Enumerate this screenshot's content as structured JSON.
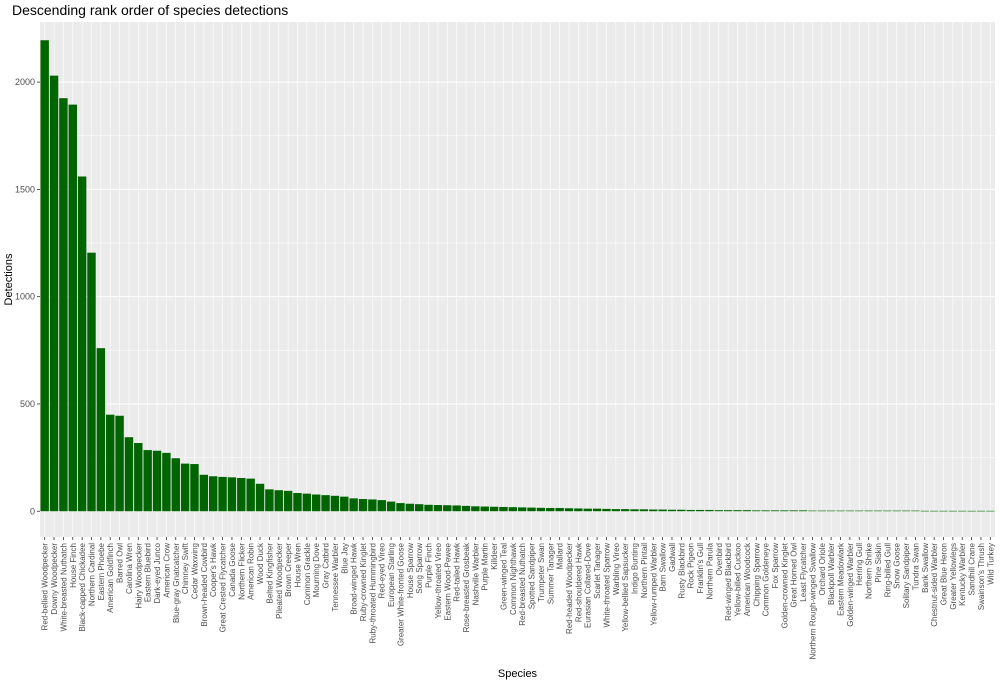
{
  "chart_data": {
    "type": "bar",
    "title": "Descending rank order of species detections",
    "xlabel": "Species",
    "ylabel": "Detections",
    "ylim": [
      -120,
      2280
    ],
    "yticks": [
      0,
      500,
      1000,
      1500,
      2000
    ],
    "grid": true,
    "bar_color": "#006400",
    "panel_color": "#ebebeb",
    "grid_color": "#ffffff",
    "categories": [
      "Red-bellied Woodpecker",
      "Downy Woodpecker",
      "White-breasted Nuthatch",
      "House Finch",
      "Black-capped Chickadee",
      "Northern Cardinal",
      "Eastern Phoebe",
      "American Goldfinch",
      "Barred Owl",
      "Carolina Wren",
      "Hairy Woodpecker",
      "Eastern Bluebird",
      "Dark-eyed Junco",
      "American Crow",
      "Blue-gray Gnatcatcher",
      "Chimney Swift",
      "Cedar Waxwing",
      "Brown-headed Cowbird",
      "Cooper's Hawk",
      "Great Crested Flycatcher",
      "Canada Goose",
      "Northern Flicker",
      "American Robin",
      "Wood Duck",
      "Belted Kingfisher",
      "Pileated Woodpecker",
      "Brown Creeper",
      "House Wren",
      "Common Grackle",
      "Mourning Dove",
      "Gray Catbird",
      "Tennessee Warbler",
      "Blue Jay",
      "Broad-winged Hawk",
      "Ruby-crowned Kinglet",
      "Ruby-throated Hummingbird",
      "Red-eyed Vireo",
      "European Starling",
      "Greater White-fronted Goose",
      "House Sparrow",
      "Song Sparrow",
      "Purple Finch",
      "Yellow-throated Vireo",
      "Eastern Wood-Pewee",
      "Red-tailed Hawk",
      "Rose-breasted Grosbeak",
      "Nashville Warbler",
      "Purple Martin",
      "Killdeer",
      "Green-winged Teal",
      "Common Nighthawk",
      "Red-breasted Nuthatch",
      "Spotted Sandpiper",
      "Trumpeter Swan",
      "Summer Tanager",
      "Mallard",
      "Red-headed Woodpecker",
      "Red-shouldered Hawk",
      "Eurasian Collared-Dove",
      "Scarlet Tanager",
      "White-throated Sparrow",
      "Warbling Vireo",
      "Yellow-bellied Sapsucker",
      "Indigo Bunting",
      "Northern Pintail",
      "Yellow-rumped Warbler",
      "Barn Swallow",
      "Gadwall",
      "Rusty Blackbird",
      "Rock Pigeon",
      "Franklin's Gull",
      "Northern Parula",
      "Ovenbird",
      "Red-winged Blackbird",
      "Yellow-billed Cuckoo",
      "American Woodcock",
      "Chipping Sparrow",
      "Common Goldeneye",
      "Fox Sparrow",
      "Golden-crowned Kinglet",
      "Great Horned Owl",
      "Least Flycatcher",
      "Northern Rough-winged Swallow",
      "Orchard Oriole",
      "Blackpoll Warbler",
      "Eastern Meadowlark",
      "Golden-winged Warbler",
      "Herring Gull",
      "Northern Shrike",
      "Pine Siskin",
      "Ring-billed Gull",
      "Snow Goose",
      "Solitary Sandpiper",
      "Tundra Swan",
      "Bank Swallow",
      "Chestnut-sided Warbler",
      "Great Blue Heron",
      "Greater Yellowlegs",
      "Kentucky Warbler",
      "Sandhill Crane",
      "Swainson's Thrush",
      "Wild Turkey"
    ],
    "values": [
      2195,
      2030,
      1925,
      1895,
      1560,
      1205,
      760,
      450,
      445,
      345,
      318,
      285,
      282,
      272,
      247,
      222,
      220,
      170,
      163,
      160,
      158,
      155,
      152,
      128,
      102,
      98,
      95,
      85,
      82,
      78,
      75,
      72,
      68,
      60,
      57,
      55,
      52,
      45,
      38,
      35,
      33,
      30,
      29,
      28,
      27,
      25,
      23,
      22,
      21,
      20,
      19,
      18,
      17,
      16,
      15,
      15,
      14,
      13,
      12,
      12,
      11,
      10,
      10,
      9,
      9,
      8,
      8,
      7,
      7,
      6,
      6,
      6,
      5,
      5,
      5,
      5,
      4,
      4,
      4,
      4,
      4,
      4,
      3,
      3,
      3,
      3,
      3,
      3,
      3,
      3,
      3,
      3,
      3,
      3,
      2,
      2,
      2,
      2,
      2,
      2,
      2,
      2
    ]
  }
}
